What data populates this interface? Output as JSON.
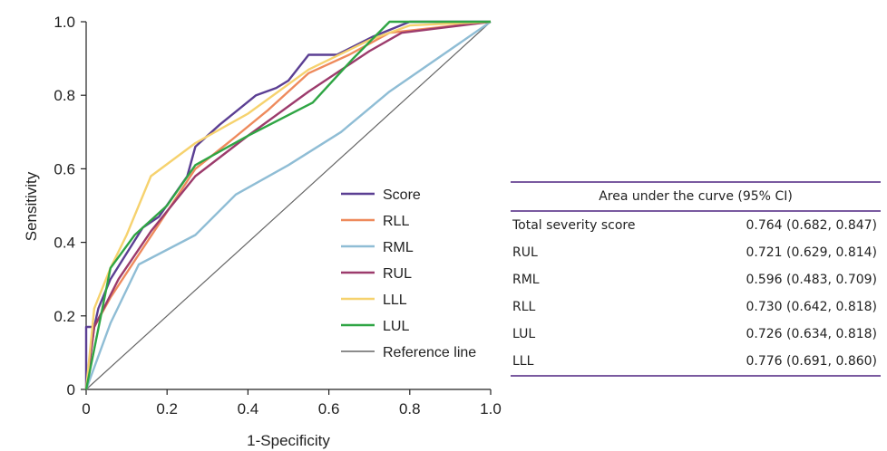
{
  "chart_data": {
    "type": "line",
    "xlabel": "1-Specificity",
    "ylabel": "Sensitivity",
    "xlim": [
      0,
      1
    ],
    "ylim": [
      0,
      1
    ],
    "x_ticks": [
      "0",
      "0.2",
      "0.4",
      "0.6",
      "0.8",
      "1.0"
    ],
    "y_ticks": [
      "0",
      "0.2",
      "0.4",
      "0.6",
      "0.8",
      "1.0"
    ],
    "legend_position": "center-right",
    "series": [
      {
        "name": "Score",
        "color": "#5b3f93",
        "points": [
          [
            0,
            0
          ],
          [
            0,
            0.17
          ],
          [
            0.02,
            0.17
          ],
          [
            0.03,
            0.22
          ],
          [
            0.06,
            0.3
          ],
          [
            0.1,
            0.37
          ],
          [
            0.14,
            0.44
          ],
          [
            0.18,
            0.47
          ],
          [
            0.25,
            0.58
          ],
          [
            0.27,
            0.66
          ],
          [
            0.33,
            0.72
          ],
          [
            0.42,
            0.8
          ],
          [
            0.47,
            0.82
          ],
          [
            0.5,
            0.84
          ],
          [
            0.55,
            0.91
          ],
          [
            0.62,
            0.91
          ],
          [
            0.71,
            0.96
          ],
          [
            0.8,
            1.0
          ],
          [
            1.0,
            1.0
          ]
        ]
      },
      {
        "name": "RLL",
        "color": "#ee8a5c",
        "points": [
          [
            0,
            0
          ],
          [
            0.02,
            0.17
          ],
          [
            0.06,
            0.25
          ],
          [
            0.12,
            0.35
          ],
          [
            0.18,
            0.45
          ],
          [
            0.27,
            0.6
          ],
          [
            0.35,
            0.67
          ],
          [
            0.45,
            0.76
          ],
          [
            0.55,
            0.86
          ],
          [
            0.65,
            0.91
          ],
          [
            0.75,
            0.97
          ],
          [
            1.0,
            1.0
          ]
        ]
      },
      {
        "name": "RML",
        "color": "#8fbdd5",
        "points": [
          [
            0,
            0
          ],
          [
            0.06,
            0.18
          ],
          [
            0.13,
            0.34
          ],
          [
            0.27,
            0.42
          ],
          [
            0.37,
            0.53
          ],
          [
            0.5,
            0.61
          ],
          [
            0.63,
            0.7
          ],
          [
            0.75,
            0.81
          ],
          [
            1.0,
            1.0
          ]
        ]
      },
      {
        "name": "RUL",
        "color": "#9c3b6c",
        "points": [
          [
            0,
            0
          ],
          [
            0.02,
            0.17
          ],
          [
            0.08,
            0.3
          ],
          [
            0.16,
            0.43
          ],
          [
            0.27,
            0.58
          ],
          [
            0.4,
            0.69
          ],
          [
            0.55,
            0.81
          ],
          [
            0.7,
            0.92
          ],
          [
            0.78,
            0.97
          ],
          [
            1.0,
            1.0
          ]
        ]
      },
      {
        "name": "LLL",
        "color": "#f6d26e",
        "points": [
          [
            0,
            0
          ],
          [
            0.02,
            0.22
          ],
          [
            0.06,
            0.33
          ],
          [
            0.1,
            0.42
          ],
          [
            0.16,
            0.58
          ],
          [
            0.27,
            0.67
          ],
          [
            0.4,
            0.75
          ],
          [
            0.55,
            0.87
          ],
          [
            0.7,
            0.95
          ],
          [
            0.8,
            0.99
          ],
          [
            1.0,
            1.0
          ]
        ]
      },
      {
        "name": "LUL",
        "color": "#2fa544",
        "points": [
          [
            0,
            0
          ],
          [
            0.06,
            0.33
          ],
          [
            0.12,
            0.42
          ],
          [
            0.2,
            0.5
          ],
          [
            0.27,
            0.61
          ],
          [
            0.4,
            0.69
          ],
          [
            0.56,
            0.78
          ],
          [
            0.66,
            0.9
          ],
          [
            0.75,
            1.0
          ],
          [
            1.0,
            1.0
          ]
        ]
      },
      {
        "name": "Reference line",
        "color": "#666666",
        "points": [
          [
            0,
            0
          ],
          [
            1,
            1
          ]
        ]
      }
    ],
    "auc_table": {
      "header": "Area under the curve (95% CI)",
      "rows": [
        {
          "label": "Total severity score",
          "value": "0.764 (0.682, 0.847)"
        },
        {
          "label": "RUL",
          "value": "0.721 (0.629, 0.814)"
        },
        {
          "label": "RML",
          "value": "0.596 (0.483, 0.709)"
        },
        {
          "label": "RLL",
          "value": "0.730 (0.642, 0.818)"
        },
        {
          "label": "LUL",
          "value": "0.726 (0.634, 0.818)"
        },
        {
          "label": "LLL",
          "value": "0.776 (0.691, 0.860)"
        }
      ]
    }
  }
}
